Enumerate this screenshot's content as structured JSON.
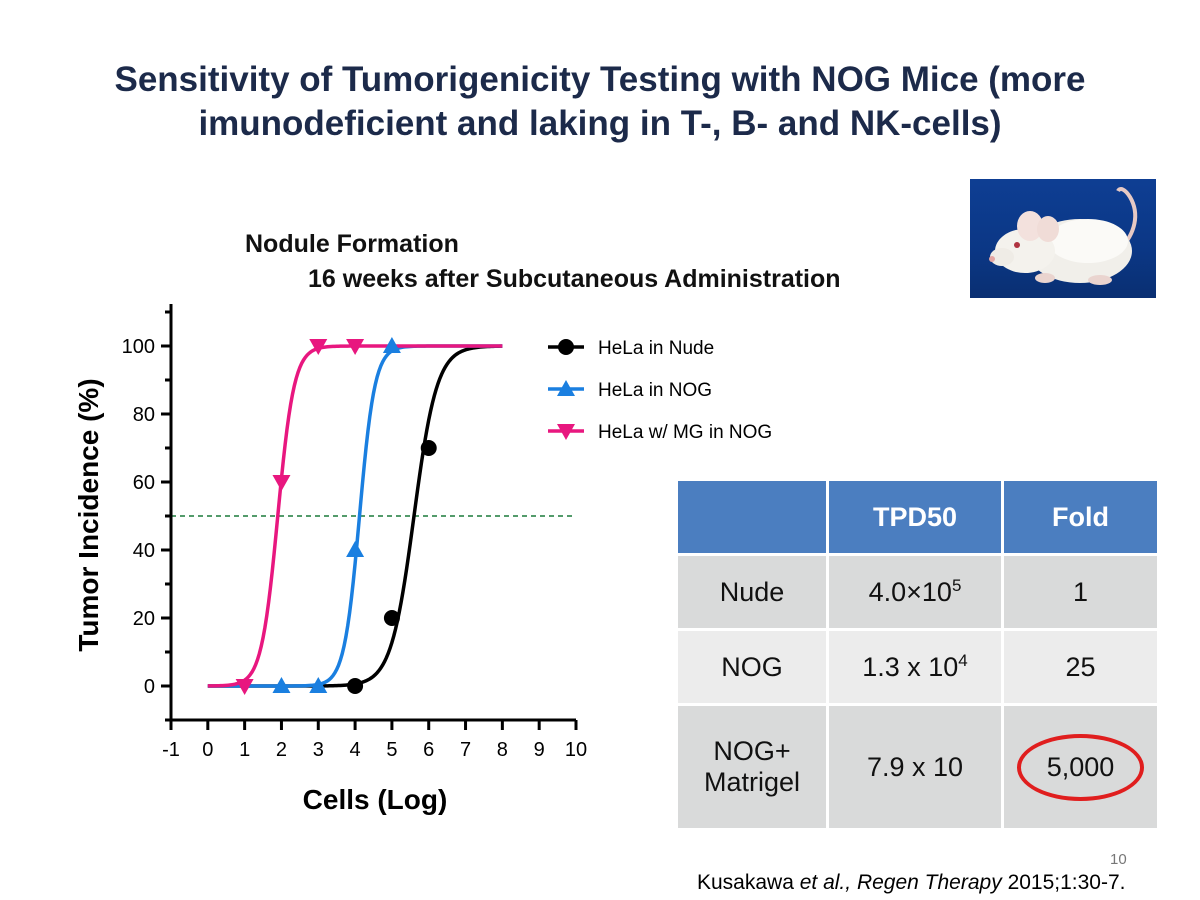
{
  "slide": {
    "title": "Sensitivity of Tumorigenicity Testing with NOG Mice (more imunodeficient and laking in T-, B- and NK-cells)",
    "page_number": "10",
    "citation": {
      "authors": "Kusakawa",
      "etal": "et al.,",
      "journal": "Regen Therapy",
      "ref": "2015;1:30-7."
    }
  },
  "chart_data": {
    "type": "line",
    "title": "Nodule Formation",
    "subtitle": "16 weeks after Subcutaneous Administration",
    "xlabel": "Cells (Log)",
    "ylabel": "Tumor  Incidence (%)",
    "xlim": [
      -1,
      10
    ],
    "ylim": [
      -10,
      110
    ],
    "xticks": [
      -1,
      0,
      1,
      2,
      3,
      4,
      5,
      6,
      7,
      8,
      9,
      10
    ],
    "yticks": [
      0,
      20,
      40,
      60,
      80,
      100
    ],
    "reference_line": {
      "y": 50,
      "style": "dashed",
      "color": "#1a7a3a"
    },
    "legend_position": "right",
    "series": [
      {
        "name": "HeLa in Nude",
        "color": "#000000",
        "marker": "circle",
        "points": [
          [
            4,
            0
          ],
          [
            5,
            20
          ],
          [
            6,
            70
          ]
        ],
        "fit": {
          "x50": 5.6,
          "slope": 3.2,
          "xmin": 0,
          "xmax": 8
        }
      },
      {
        "name": "HeLa in NOG",
        "color": "#1a7fe0",
        "marker": "triangle-up",
        "points": [
          [
            2,
            0
          ],
          [
            3,
            0
          ],
          [
            4,
            40
          ],
          [
            5,
            100
          ]
        ],
        "fit": {
          "x50": 4.12,
          "slope": 4.8,
          "xmin": 0,
          "xmax": 8
        }
      },
      {
        "name": "HeLa w/ MG in NOG",
        "color": "#e8177f",
        "marker": "triangle-down",
        "points": [
          [
            1,
            0
          ],
          [
            2,
            60
          ],
          [
            3,
            100
          ],
          [
            4,
            100
          ]
        ],
        "fit": {
          "x50": 1.9,
          "slope": 4.5,
          "xmin": 0,
          "xmax": 8
        }
      }
    ]
  },
  "table": {
    "headers": [
      "",
      "TPD50",
      "Fold"
    ],
    "rows": [
      {
        "label": "Nude",
        "tpd_base": "4.0×10",
        "tpd_exp": "5",
        "fold": "1"
      },
      {
        "label": "NOG",
        "tpd_base": "1.3 x 10",
        "tpd_exp": "4",
        "fold": "25"
      },
      {
        "label_line1": "NOG+",
        "label_line2": "Matrigel",
        "tpd_base": "7.9 x 10",
        "tpd_exp": "",
        "fold": "5,000",
        "fold_highlight_color": "#e01e1e"
      }
    ]
  },
  "photo": {
    "subject": "white-mouse",
    "background_color": "#0b3785"
  }
}
